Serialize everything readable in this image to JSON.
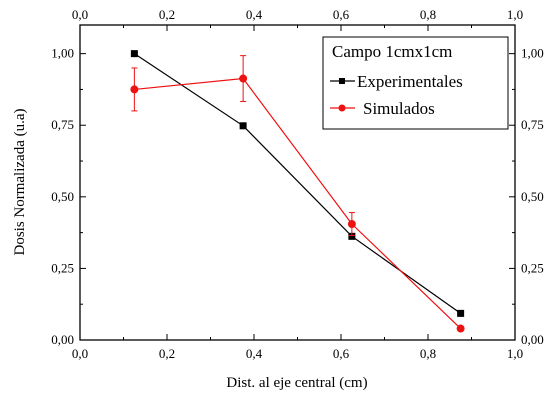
{
  "chart_data": {
    "type": "line",
    "xlabel": "Dist. al eje central (cm)",
    "ylabel": "Dosis Normalizada (u.a)",
    "xlim": [
      0,
      1.0
    ],
    "ylim": [
      0,
      1.1
    ],
    "x_ticks": [
      "0,0",
      "0,2",
      "0,4",
      "0,6",
      "0,8",
      "1,0"
    ],
    "x_tick_values": [
      0,
      0.2,
      0.4,
      0.6,
      0.8,
      1.0
    ],
    "y_ticks": [
      "0,00",
      "0,25",
      "0,50",
      "0,75",
      "1,00"
    ],
    "y_tick_values": [
      0,
      0.25,
      0.5,
      0.75,
      1.0
    ],
    "mirror_axes": true,
    "grid": false,
    "legend": {
      "title": "Campo 1cmx1cm",
      "position": "top-right"
    },
    "series": [
      {
        "name": "Experimentales",
        "color": "#000000",
        "marker": "square",
        "x": [
          0.125,
          0.375,
          0.625,
          0.875
        ],
        "y": [
          1.0,
          0.748,
          0.362,
          0.093
        ]
      },
      {
        "name": "Simulados",
        "color": "#ee1111",
        "marker": "circle",
        "x": [
          0.125,
          0.375,
          0.625,
          0.875
        ],
        "y": [
          0.875,
          0.913,
          0.405,
          0.04
        ],
        "error": [
          0.075,
          0.08,
          0.04,
          0.0
        ]
      }
    ]
  }
}
